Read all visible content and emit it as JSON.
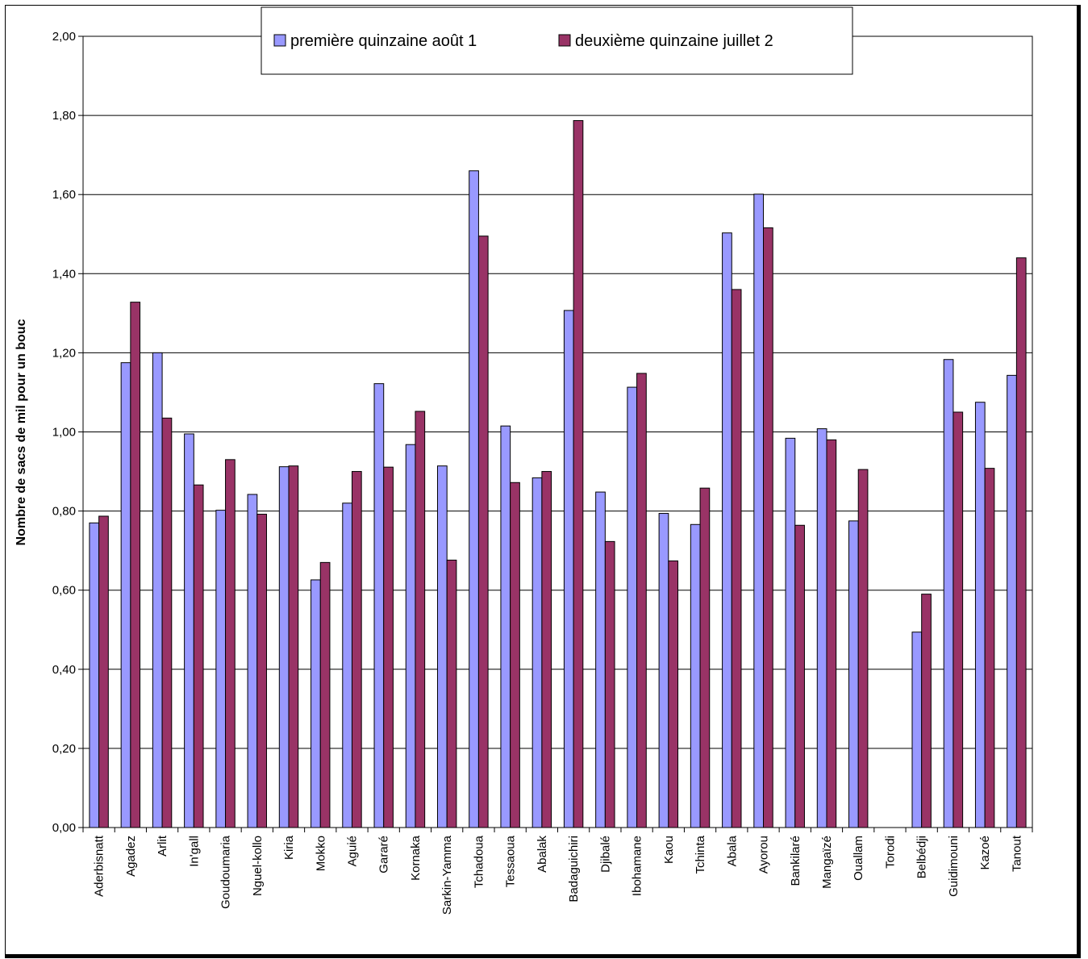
{
  "chart_data": {
    "type": "bar",
    "title": "",
    "xlabel": "",
    "ylabel": "Nombre de sacs de mil pour un bouc",
    "ylim": [
      0,
      2
    ],
    "yticks": [
      "0,00",
      "0,20",
      "0,40",
      "0,60",
      "0,80",
      "1,00",
      "1,20",
      "1,40",
      "1,60",
      "1,80",
      "2,00"
    ],
    "grid": true,
    "legend_position": "top-center",
    "categories": [
      "Aderbisnatt",
      "Agadez",
      "Arlit",
      "In'gall",
      "Goudoumaria",
      "Nguel-kollo",
      "Kiria",
      "Mokko",
      "Aguié",
      "Gararé",
      "Kornaka",
      "Sarkin-Yamma",
      "Tchadoua",
      "Tessaoua",
      "Abalak",
      "Badaguichiri",
      "Djibalé",
      "Ibohamane",
      "Kaou",
      "Tchinta",
      "Abala",
      "Ayorou",
      "Bankilaré",
      "Mangaïzé",
      "Ouallam",
      "Torodi",
      "Belbédji",
      "Guidimouni",
      "Kazoé",
      "Tanout"
    ],
    "series": [
      {
        "name": "première quinzaine août 1",
        "color": "#9999ff",
        "values": [
          0.77,
          1.175,
          1.2,
          0.995,
          0.802,
          0.842,
          0.912,
          0.626,
          0.82,
          1.122,
          0.968,
          0.914,
          1.66,
          1.015,
          0.884,
          1.307,
          0.848,
          1.113,
          0.794,
          0.766,
          1.503,
          1.601,
          0.984,
          1.008,
          0.775,
          0.0,
          0.494,
          1.183,
          1.075,
          1.143
        ]
      },
      {
        "name": "deuxième quinzaine juillet 2",
        "color": "#993366",
        "values": [
          0.787,
          1.328,
          1.035,
          0.866,
          0.93,
          0.792,
          0.914,
          0.67,
          0.9,
          0.911,
          1.052,
          0.676,
          1.495,
          0.872,
          0.9,
          1.787,
          0.723,
          1.148,
          0.674,
          0.858,
          1.36,
          1.516,
          0.764,
          0.98,
          0.905,
          0.0,
          0.59,
          1.05,
          0.908,
          1.44
        ]
      }
    ]
  }
}
